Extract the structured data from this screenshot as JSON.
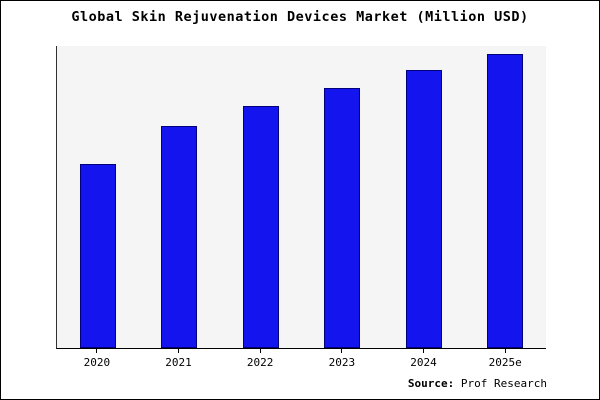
{
  "title": "Global Skin Rejuvenation Devices Market (Million USD)",
  "source": {
    "label": "Source:",
    "text": " Prof Research"
  },
  "chart_data": {
    "type": "bar",
    "title": "Global Skin Rejuvenation Devices Market (Million USD)",
    "categories": [
      "2020",
      "2021",
      "2022",
      "2023",
      "2024",
      "2025e"
    ],
    "values": [
      61,
      73.5,
      80,
      86,
      92,
      97.5
    ],
    "xlabel": "",
    "ylabel": "",
    "ylim": [
      0,
      100
    ],
    "y_axis_tick_labels_visible": false,
    "grid": false,
    "legend": false,
    "bar_color": "#1414ee",
    "bar_border_color": "#00007d",
    "plot_background": "#f5f5f5"
  }
}
